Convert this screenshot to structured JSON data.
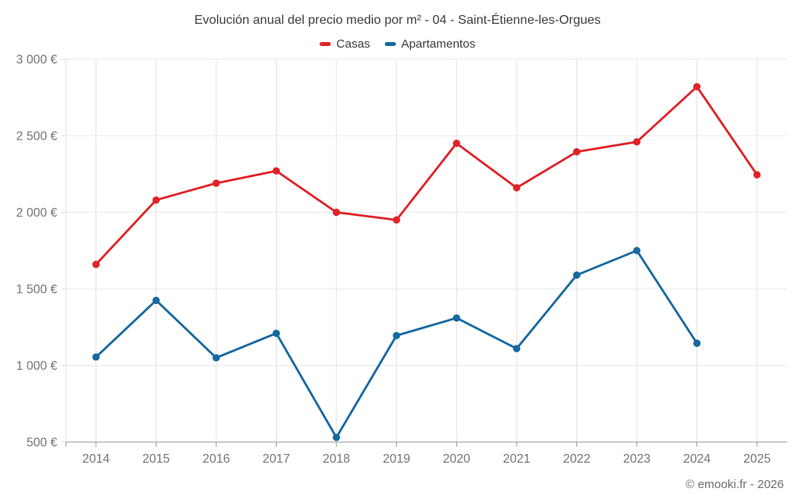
{
  "header": {
    "title": "Evolución anual del precio medio por m² - 04 - Saint-Étienne-les-Orgues"
  },
  "footer": {
    "credit": "© emooki.fr - 2026"
  },
  "colors": {
    "casas": "#e02328",
    "apartamentos": "#1669a0",
    "title_text": "#3d3d3d",
    "axis_text": "#757575"
  },
  "chart_data": {
    "type": "line",
    "title": "Evolución anual del precio medio por m² - 04 - Saint-Étienne-les-Orgues",
    "x": [
      2014,
      2015,
      2016,
      2017,
      2018,
      2019,
      2020,
      2021,
      2022,
      2023,
      2024,
      2025
    ],
    "xtick_labels": [
      "2014",
      "2015",
      "2016",
      "2017",
      "2018",
      "2019",
      "2020",
      "2021",
      "2022",
      "2023",
      "2024",
      "2025"
    ],
    "series": [
      {
        "name": "Casas",
        "color": "#e02328",
        "values": [
          1660,
          2080,
          2190,
          2270,
          2000,
          1950,
          2450,
          2160,
          2395,
          2460,
          2820,
          2245
        ]
      },
      {
        "name": "Apartamentos",
        "color": "#1669a0",
        "values": [
          1055,
          1425,
          1050,
          1210,
          530,
          1195,
          1310,
          1110,
          1590,
          1750,
          1145,
          null
        ]
      }
    ],
    "xlabel": "",
    "ylabel": "",
    "ylim": [
      500,
      3000
    ],
    "ytick_step": 500,
    "ytick_labels": [
      "500 €",
      "1 000 €",
      "1 500 €",
      "2 000 €",
      "2 500 €",
      "3 000 €"
    ],
    "currency": "€",
    "grid": true,
    "legend_position": "top"
  }
}
